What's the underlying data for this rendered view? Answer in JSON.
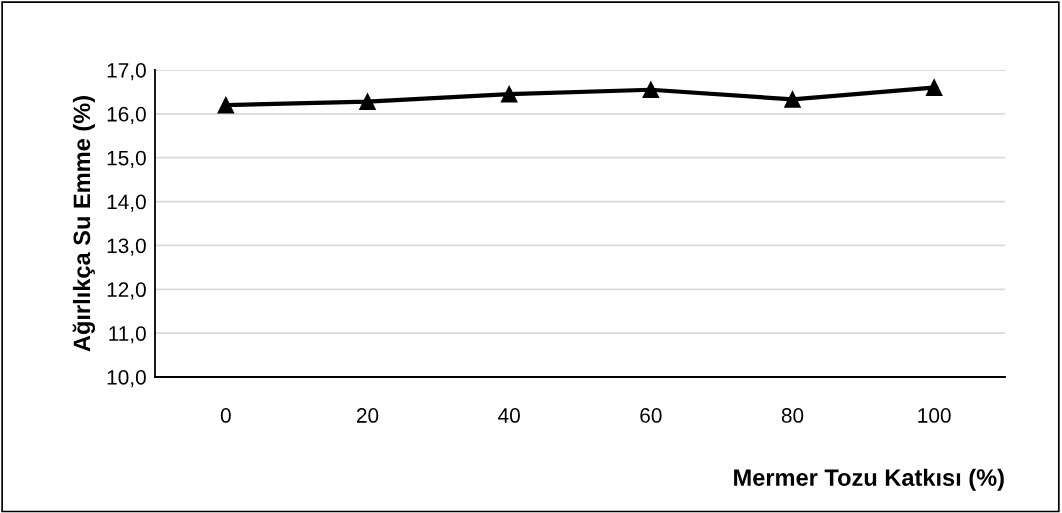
{
  "chart_data": {
    "type": "line",
    "xlabel": "Mermer Tozu Katkısı (%)",
    "ylabel": "Ağırlıkça Su Emme (%)",
    "categories": [
      "0",
      "20",
      "40",
      "60",
      "80",
      "100"
    ],
    "series": [
      {
        "color": "#000000",
        "values": [
          16.2,
          16.28,
          16.45,
          16.55,
          16.33,
          16.6
        ]
      }
    ],
    "ylim": [
      10,
      17
    ],
    "yticks": [
      {
        "value": 10,
        "label": "10,0"
      },
      {
        "value": 11,
        "label": "11,0"
      },
      {
        "value": 12,
        "label": "12,0"
      },
      {
        "value": 13,
        "label": "13,0"
      },
      {
        "value": 14,
        "label": "14,0"
      },
      {
        "value": 15,
        "label": "15,0"
      },
      {
        "value": 16,
        "label": "16,0"
      },
      {
        "value": 17,
        "label": "17,0"
      }
    ],
    "grid": "y",
    "marker": "triangle",
    "line_style": "solid"
  }
}
